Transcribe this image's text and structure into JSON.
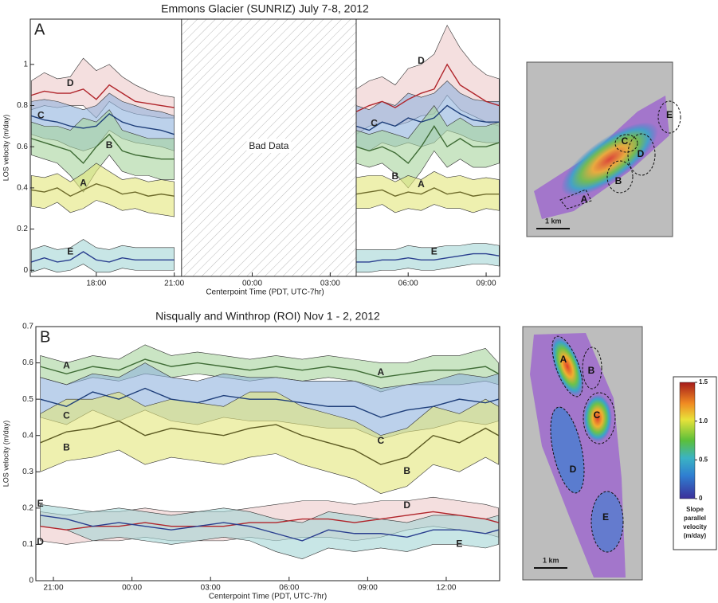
{
  "chart_data": [
    {
      "type": "line",
      "title": "Emmons Glacier (SUNRIZ) July 7-8, 2012",
      "panel_label": "A",
      "xlabel": "Centerpoint Time (PDT, UTC-7hr)",
      "ylabel": "LOS velocity (m/day)",
      "xlim": [
        15.46,
        33.52
      ],
      "ylim": [
        -0.03,
        1.22
      ],
      "xticks": [
        {
          "value": 18,
          "label": "18:00"
        },
        {
          "value": 21,
          "label": "21:00"
        },
        {
          "value": 24,
          "label": "00:00"
        },
        {
          "value": 27,
          "label": "03:00"
        },
        {
          "value": 30,
          "label": "06:00"
        },
        {
          "value": 33,
          "label": "09:00"
        }
      ],
      "yticks": [
        0,
        0.2,
        0.4,
        0.6,
        0.8,
        1
      ],
      "bad_data": {
        "label": "Bad Data",
        "xrange": [
          21.28,
          28.0
        ]
      },
      "x": [
        15.5,
        16,
        16.5,
        17,
        17.5,
        18,
        18.5,
        19,
        19.5,
        20,
        20.5,
        21,
        25,
        28,
        28.5,
        29,
        29.5,
        30,
        30.5,
        31,
        31.5,
        32,
        32.5,
        33,
        33.5
      ],
      "series": [
        {
          "name": "D",
          "color": "#b0242a",
          "band_color": "#ecc9c9",
          "values": [
            0.85,
            0.87,
            0.86,
            0.86,
            0.88,
            0.83,
            0.9,
            0.86,
            0.82,
            0.81,
            0.8,
            0.79,
            null,
            0.77,
            0.8,
            0.82,
            0.79,
            0.83,
            0.86,
            0.88,
            1.0,
            0.9,
            0.86,
            0.82,
            0.8
          ],
          "upper": [
            0.92,
            0.96,
            0.93,
            0.94,
            1.03,
            0.97,
            1.0,
            0.94,
            0.9,
            0.87,
            0.85,
            0.84,
            null,
            0.88,
            0.92,
            0.94,
            0.9,
            0.98,
            1.0,
            1.05,
            1.19,
            1.08,
            1.0,
            0.95,
            0.93
          ],
          "lower": [
            0.78,
            0.8,
            0.79,
            0.8,
            0.8,
            0.74,
            0.82,
            0.78,
            0.76,
            0.75,
            0.74,
            0.74,
            null,
            0.66,
            0.7,
            0.72,
            0.7,
            0.72,
            0.75,
            0.76,
            0.85,
            0.78,
            0.75,
            0.72,
            0.7
          ]
        },
        {
          "name": "C",
          "color": "#1f3f7a",
          "band_color": "#8fb2dd",
          "values": [
            0.75,
            0.73,
            0.72,
            0.7,
            0.69,
            0.7,
            0.76,
            0.72,
            0.7,
            0.69,
            0.68,
            0.66,
            null,
            0.7,
            0.68,
            0.72,
            0.7,
            0.74,
            0.72,
            0.74,
            0.8,
            0.76,
            0.73,
            0.72,
            0.72
          ],
          "upper": [
            0.82,
            0.83,
            0.82,
            0.8,
            0.78,
            0.8,
            0.86,
            0.82,
            0.8,
            0.78,
            0.77,
            0.75,
            null,
            0.8,
            0.78,
            0.82,
            0.8,
            0.86,
            0.84,
            0.86,
            0.92,
            0.86,
            0.83,
            0.82,
            0.82
          ],
          "lower": [
            0.66,
            0.64,
            0.63,
            0.6,
            0.58,
            0.6,
            0.68,
            0.64,
            0.62,
            0.61,
            0.6,
            0.58,
            null,
            0.6,
            0.58,
            0.62,
            0.6,
            0.62,
            0.6,
            0.62,
            0.68,
            0.66,
            0.63,
            0.62,
            0.62
          ]
        },
        {
          "name": "B",
          "color": "#3e6b35",
          "band_color": "#a6d49d",
          "values": [
            0.64,
            0.62,
            0.6,
            0.58,
            0.52,
            0.6,
            0.66,
            0.58,
            0.56,
            0.55,
            0.54,
            0.54,
            null,
            0.6,
            0.58,
            0.6,
            0.57,
            0.52,
            0.6,
            0.7,
            0.6,
            0.64,
            0.6,
            0.6,
            0.62
          ],
          "upper": [
            0.72,
            0.7,
            0.7,
            0.68,
            0.74,
            0.72,
            0.78,
            0.68,
            0.66,
            0.64,
            0.64,
            0.64,
            null,
            0.68,
            0.66,
            0.68,
            0.66,
            0.64,
            0.72,
            0.8,
            0.7,
            0.74,
            0.7,
            0.7,
            0.72
          ],
          "lower": [
            0.56,
            0.54,
            0.52,
            0.46,
            0.38,
            0.48,
            0.56,
            0.48,
            0.46,
            0.46,
            0.44,
            0.44,
            null,
            0.52,
            0.5,
            0.52,
            0.47,
            0.4,
            0.48,
            0.58,
            0.5,
            0.54,
            0.5,
            0.5,
            0.52
          ]
        },
        {
          "name": "A",
          "color": "#6d6a2a",
          "band_color": "#e2e67a",
          "values": [
            0.39,
            0.38,
            0.4,
            0.36,
            0.39,
            0.42,
            0.4,
            0.37,
            0.38,
            0.36,
            0.37,
            0.36,
            null,
            0.37,
            0.38,
            0.39,
            0.36,
            0.38,
            0.37,
            0.4,
            0.37,
            0.38,
            0.36,
            0.37,
            0.37
          ],
          "upper": [
            0.46,
            0.45,
            0.47,
            0.43,
            0.47,
            0.52,
            0.48,
            0.44,
            0.45,
            0.43,
            0.44,
            0.43,
            null,
            0.45,
            0.46,
            0.46,
            0.43,
            0.46,
            0.44,
            0.48,
            0.45,
            0.46,
            0.44,
            0.45,
            0.44
          ],
          "lower": [
            0.31,
            0.3,
            0.33,
            0.28,
            0.3,
            0.34,
            0.32,
            0.29,
            0.3,
            0.28,
            0.27,
            0.26,
            null,
            0.3,
            0.3,
            0.32,
            0.28,
            0.3,
            0.29,
            0.32,
            0.3,
            0.3,
            0.28,
            0.3,
            0.29
          ]
        },
        {
          "name": "E",
          "color": "#2a3f8f",
          "band_color": "#a3d5d5",
          "values": [
            0.04,
            0.06,
            0.04,
            0.05,
            0.09,
            0.05,
            0.04,
            0.06,
            0.05,
            0.05,
            0.05,
            0.05,
            null,
            0.04,
            0.04,
            0.05,
            0.05,
            0.06,
            0.05,
            0.05,
            0.06,
            0.07,
            0.08,
            0.08,
            0.07
          ],
          "upper": [
            0.1,
            0.12,
            0.1,
            0.11,
            0.15,
            0.11,
            0.1,
            0.12,
            0.11,
            0.11,
            0.11,
            0.11,
            null,
            0.1,
            0.1,
            0.1,
            0.1,
            0.12,
            0.11,
            0.11,
            0.12,
            0.12,
            0.13,
            0.13,
            0.12
          ],
          "lower": [
            -0.01,
            0.01,
            -0.01,
            0,
            0.03,
            -0.01,
            -0.01,
            0.01,
            0,
            0,
            0,
            0,
            null,
            -0.01,
            -0.01,
            0,
            0,
            0.01,
            0,
            0,
            0.01,
            0.02,
            0.03,
            0.03,
            0.02
          ]
        }
      ]
    },
    {
      "type": "line",
      "title": "Nisqually and Winthrop (ROI) Nov 1 - 2, 2012",
      "panel_label": "B",
      "xlabel": "Centerpoint Time (PDT, UTC-7hr)",
      "ylabel": "LOS velocity (m/day)",
      "xlim": [
        20.33,
        38.04
      ],
      "ylim": [
        0,
        0.7
      ],
      "xticks": [
        {
          "value": 21,
          "label": "21:00"
        },
        {
          "value": 24,
          "label": "00:00"
        },
        {
          "value": 27,
          "label": "03:00"
        },
        {
          "value": 30,
          "label": "06:00"
        },
        {
          "value": 33,
          "label": "09:00"
        },
        {
          "value": 36,
          "label": "12:00"
        }
      ],
      "yticks": [
        0,
        0.1,
        0.2,
        0.3,
        0.4,
        0.5,
        0.6,
        0.7
      ],
      "x": [
        20.5,
        21.5,
        22.5,
        23.5,
        24.5,
        25.5,
        26.5,
        27.5,
        28.5,
        29.5,
        30.5,
        31.5,
        32.5,
        33.5,
        34.5,
        35.5,
        36.5,
        37.5,
        38.0
      ],
      "series": [
        {
          "name": "A",
          "color": "#3e6b35",
          "band_color": "#a6d49d",
          "values": [
            0.59,
            0.57,
            0.59,
            0.58,
            0.61,
            0.59,
            0.6,
            0.59,
            0.58,
            0.59,
            0.58,
            0.59,
            0.58,
            0.56,
            0.57,
            0.58,
            0.58,
            0.59,
            0.57
          ],
          "upper": [
            0.62,
            0.6,
            0.62,
            0.61,
            0.65,
            0.62,
            0.63,
            0.62,
            0.61,
            0.62,
            0.61,
            0.62,
            0.61,
            0.6,
            0.6,
            0.62,
            0.62,
            0.64,
            0.6
          ],
          "lower": [
            0.56,
            0.54,
            0.56,
            0.55,
            0.57,
            0.56,
            0.57,
            0.56,
            0.55,
            0.56,
            0.55,
            0.56,
            0.55,
            0.52,
            0.54,
            0.54,
            0.54,
            0.55,
            0.54
          ]
        },
        {
          "name": "C",
          "color": "#1f3f7a",
          "band_color": "#8fb2dd",
          "values": [
            0.5,
            0.48,
            0.52,
            0.5,
            0.53,
            0.5,
            0.49,
            0.51,
            0.5,
            0.5,
            0.49,
            0.48,
            0.48,
            0.45,
            0.47,
            0.48,
            0.5,
            0.49,
            0.5
          ],
          "upper": [
            0.56,
            0.54,
            0.57,
            0.56,
            0.6,
            0.56,
            0.55,
            0.57,
            0.56,
            0.56,
            0.55,
            0.55,
            0.55,
            0.53,
            0.54,
            0.55,
            0.57,
            0.56,
            0.57
          ],
          "lower": [
            0.45,
            0.43,
            0.47,
            0.44,
            0.47,
            0.44,
            0.43,
            0.45,
            0.44,
            0.44,
            0.43,
            0.42,
            0.42,
            0.39,
            0.41,
            0.42,
            0.44,
            0.43,
            0.44
          ]
        },
        {
          "name": "B",
          "color": "#5c5a22",
          "band_color": "#e2e67a",
          "values": [
            0.38,
            0.41,
            0.42,
            0.44,
            0.4,
            0.42,
            0.41,
            0.4,
            0.42,
            0.43,
            0.4,
            0.38,
            0.36,
            0.32,
            0.34,
            0.4,
            0.38,
            0.42,
            0.4
          ],
          "upper": [
            0.46,
            0.5,
            0.5,
            0.52,
            0.48,
            0.5,
            0.49,
            0.48,
            0.52,
            0.52,
            0.48,
            0.46,
            0.44,
            0.4,
            0.42,
            0.48,
            0.46,
            0.5,
            0.48
          ],
          "lower": [
            0.3,
            0.33,
            0.34,
            0.36,
            0.32,
            0.34,
            0.33,
            0.32,
            0.34,
            0.35,
            0.32,
            0.3,
            0.28,
            0.24,
            0.26,
            0.32,
            0.3,
            0.34,
            0.32
          ]
        },
        {
          "name": "D",
          "color": "#b0242a",
          "band_color": "#ecc9c9",
          "values": [
            0.15,
            0.14,
            0.15,
            0.15,
            0.16,
            0.15,
            0.15,
            0.15,
            0.16,
            0.16,
            0.17,
            0.17,
            0.16,
            0.17,
            0.18,
            0.19,
            0.18,
            0.17,
            0.16
          ],
          "upper": [
            0.19,
            0.18,
            0.19,
            0.19,
            0.2,
            0.19,
            0.19,
            0.19,
            0.2,
            0.21,
            0.22,
            0.22,
            0.21,
            0.22,
            0.22,
            0.23,
            0.22,
            0.21,
            0.2
          ],
          "lower": [
            0.11,
            0.1,
            0.11,
            0.11,
            0.12,
            0.11,
            0.11,
            0.11,
            0.12,
            0.11,
            0.12,
            0.12,
            0.11,
            0.12,
            0.14,
            0.15,
            0.14,
            0.13,
            0.12
          ]
        },
        {
          "name": "E",
          "color": "#2a3f8f",
          "band_color": "#a3d5d5",
          "values": [
            0.18,
            0.17,
            0.15,
            0.16,
            0.15,
            0.14,
            0.15,
            0.16,
            0.15,
            0.13,
            0.11,
            0.14,
            0.13,
            0.13,
            0.12,
            0.14,
            0.14,
            0.13,
            0.14
          ],
          "upper": [
            0.21,
            0.2,
            0.19,
            0.2,
            0.19,
            0.18,
            0.19,
            0.2,
            0.19,
            0.17,
            0.16,
            0.19,
            0.18,
            0.17,
            0.16,
            0.18,
            0.18,
            0.17,
            0.18
          ],
          "lower": [
            0.15,
            0.14,
            0.11,
            0.12,
            0.11,
            0.1,
            0.11,
            0.12,
            0.11,
            0.08,
            0.06,
            0.09,
            0.08,
            0.09,
            0.08,
            0.1,
            0.1,
            0.09,
            0.1
          ]
        }
      ]
    }
  ],
  "maps": [
    {
      "labels": [
        "A",
        "B",
        "C",
        "D",
        "E"
      ],
      "scale": "1 km"
    },
    {
      "labels": [
        "A",
        "B",
        "C",
        "D",
        "E"
      ],
      "scale": "1 km"
    }
  ],
  "colorbar": {
    "ticks": [
      1.5,
      {
        "value": 1,
        "label": "1.0"
      },
      0.5,
      0
    ],
    "label_lines": [
      "Slope",
      "parallel",
      "velocity",
      "(m/day)"
    ]
  }
}
